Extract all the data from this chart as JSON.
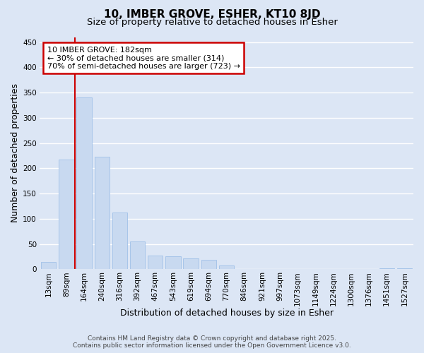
{
  "title_line1": "10, IMBER GROVE, ESHER, KT10 8JD",
  "title_line2": "Size of property relative to detached houses in Esher",
  "xlabel": "Distribution of detached houses by size in Esher",
  "ylabel": "Number of detached properties",
  "bar_color": "#c8d9f0",
  "bar_edge_color": "#a0c0e8",
  "background_color": "#dce6f5",
  "grid_color": "#ffffff",
  "categories": [
    "13sqm",
    "89sqm",
    "164sqm",
    "240sqm",
    "316sqm",
    "392sqm",
    "467sqm",
    "543sqm",
    "619sqm",
    "694sqm",
    "770sqm",
    "846sqm",
    "921sqm",
    "997sqm",
    "1073sqm",
    "1149sqm",
    "1224sqm",
    "1300sqm",
    "1376sqm",
    "1451sqm",
    "1527sqm"
  ],
  "values": [
    15,
    217,
    340,
    223,
    113,
    55,
    27,
    26,
    22,
    19,
    7,
    0,
    0,
    0,
    0,
    0,
    0,
    0,
    0,
    2,
    2
  ],
  "red_line_x": 1.5,
  "annotation_text": "10 IMBER GROVE: 182sqm\n← 30% of detached houses are smaller (314)\n70% of semi-detached houses are larger (723) →",
  "annotation_box_color": "#ffffff",
  "annotation_border_color": "#cc0000",
  "red_line_color": "#cc0000",
  "ylim": [
    0,
    460
  ],
  "yticks": [
    0,
    50,
    100,
    150,
    200,
    250,
    300,
    350,
    400,
    450
  ],
  "footer_line1": "Contains HM Land Registry data © Crown copyright and database right 2025.",
  "footer_line2": "Contains public sector information licensed under the Open Government Licence v3.0.",
  "title_fontsize": 11,
  "subtitle_fontsize": 9.5,
  "axis_label_fontsize": 9,
  "tick_fontsize": 7.5,
  "annotation_fontsize": 8,
  "footer_fontsize": 6.5
}
